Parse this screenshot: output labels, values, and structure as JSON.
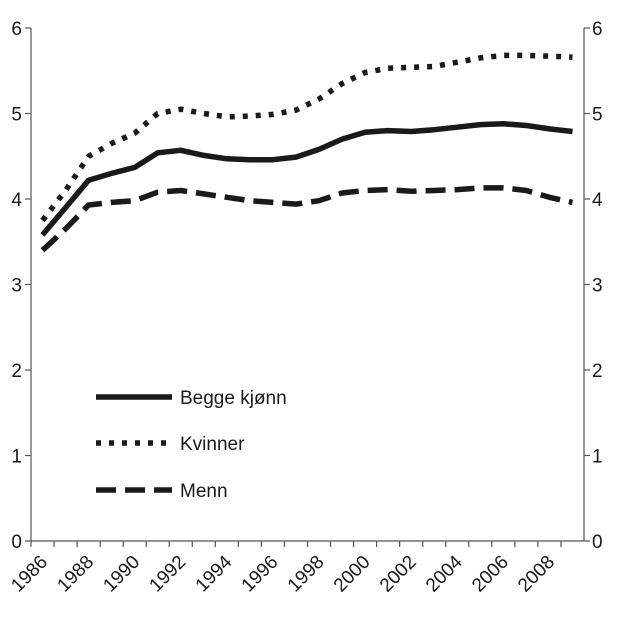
{
  "chart_data": {
    "type": "line",
    "title": "",
    "xlabel": "",
    "ylabel": "",
    "x": [
      1986,
      1987,
      1988,
      1989,
      1990,
      1991,
      1992,
      1993,
      1994,
      1995,
      1996,
      1997,
      1998,
      1999,
      2000,
      2001,
      2002,
      2003,
      2004,
      2005,
      2006,
      2007,
      2008,
      2009
    ],
    "x_tick_labels": [
      "1986",
      "1988",
      "1990",
      "1992",
      "1994",
      "1996",
      "1998",
      "2000",
      "2002",
      "2004",
      "2006",
      "2008"
    ],
    "y_tick_labels": [
      "0",
      "1",
      "2",
      "3",
      "4",
      "5",
      "6"
    ],
    "ylim": [
      0,
      6
    ],
    "xlim": [
      1985.5,
      2009.5
    ],
    "y_axis_right_mirror": true,
    "grid": false,
    "legend_position": "bottom-left",
    "series": [
      {
        "name": "Begge kjønn",
        "style": "solid",
        "values": [
          3.58,
          3.9,
          4.22,
          4.3,
          4.37,
          4.54,
          4.57,
          4.51,
          4.47,
          4.46,
          4.46,
          4.49,
          4.58,
          4.7,
          4.78,
          4.8,
          4.79,
          4.81,
          4.84,
          4.87,
          4.88,
          4.86,
          4.82,
          4.79
        ]
      },
      {
        "name": "Kvinner",
        "style": "dotted",
        "values": [
          3.75,
          4.1,
          4.5,
          4.65,
          4.77,
          5.0,
          5.05,
          5.0,
          4.96,
          4.97,
          4.99,
          5.04,
          5.17,
          5.35,
          5.48,
          5.53,
          5.54,
          5.55,
          5.6,
          5.65,
          5.68,
          5.68,
          5.67,
          5.66
        ]
      },
      {
        "name": "Menn",
        "style": "dashed",
        "values": [
          3.4,
          3.65,
          3.93,
          3.96,
          3.98,
          4.08,
          4.1,
          4.06,
          4.02,
          3.98,
          3.96,
          3.94,
          3.98,
          4.07,
          4.1,
          4.11,
          4.09,
          4.1,
          4.11,
          4.13,
          4.13,
          4.1,
          4.02,
          3.96
        ]
      }
    ]
  },
  "colors": {
    "line": "#1a1a1a",
    "axis": "#555555"
  }
}
